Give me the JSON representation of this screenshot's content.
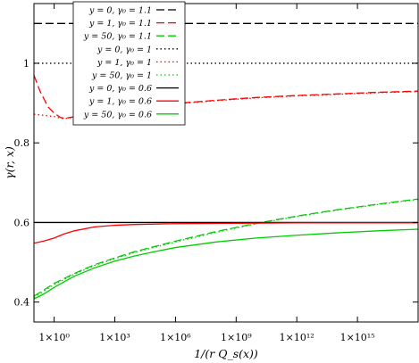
{
  "chart_data": {
    "type": "line",
    "xscale": "log",
    "xlabel": "1/(r Q_s(x))",
    "ylabel": "γ(r, x)",
    "xlim": [
      0.1,
      1e+18
    ],
    "ylim": [
      0.35,
      1.15
    ],
    "xticks": [
      1,
      1000,
      1000000,
      1000000000,
      1000000000000,
      1000000000000000
    ],
    "xtick_labels": [
      "1×10⁰",
      "1×10³",
      "1×10⁶",
      "1×10⁹",
      "1×10¹²",
      "1×10¹⁵"
    ],
    "yticks": [
      0.4,
      0.6,
      0.8,
      1.0
    ],
    "ytick_labels": [
      "0.4",
      "0.6",
      "0.8",
      "1"
    ],
    "grid": false,
    "legend_position": "top-left",
    "series": [
      {
        "name": "y = 0, γ₀ = 1.1",
        "style": "dashed",
        "color": "#000000",
        "points": [
          [
            0.1,
            1.1
          ],
          [
            1e+18,
            1.1
          ]
        ]
      },
      {
        "name": "y = 1, γ₀ = 1.1",
        "style": "dashed",
        "color": "#ff0000",
        "points": [
          [
            0.1,
            0.97
          ],
          [
            0.2,
            0.93
          ],
          [
            0.5,
            0.89
          ],
          [
            1,
            0.875
          ],
          [
            2,
            0.864
          ],
          [
            3,
            0.862
          ],
          [
            5,
            0.863
          ],
          [
            10,
            0.866
          ],
          [
            100,
            0.873
          ],
          [
            1000,
            0.881
          ],
          [
            10000,
            0.887
          ],
          [
            100000,
            0.893
          ],
          [
            1000000,
            0.899
          ],
          [
            100000000.0,
            0.907
          ],
          [
            10000000000.0,
            0.914
          ],
          [
            1000000000000.0,
            0.919
          ],
          [
            100000000000000.0,
            0.923
          ],
          [
            1e+16,
            0.927
          ],
          [
            1e+18,
            0.93
          ]
        ]
      },
      {
        "name": "y = 50, γ₀ = 1.1",
        "style": "dashed",
        "color": "#00cc00",
        "points": [
          [
            0.1,
            0.415
          ],
          [
            0.3,
            0.43
          ],
          [
            1,
            0.447
          ],
          [
            10,
            0.472
          ],
          [
            100,
            0.494
          ],
          [
            1000,
            0.511
          ],
          [
            10000,
            0.527
          ],
          [
            100000,
            0.54
          ],
          [
            1000000,
            0.553
          ],
          [
            100000000.0,
            0.577
          ],
          [
            10000000000.0,
            0.598
          ],
          [
            1000000000000.0,
            0.616
          ],
          [
            100000000000000.0,
            0.632
          ],
          [
            1e+16,
            0.646
          ],
          [
            1e+18,
            0.659
          ]
        ]
      },
      {
        "name": "y = 0, γ₀ = 1",
        "style": "dotted",
        "color": "#000000",
        "points": [
          [
            0.1,
            1.0
          ],
          [
            1e+18,
            1.0
          ]
        ]
      },
      {
        "name": "y = 1, γ₀ = 1",
        "style": "dotted",
        "color": "#ff0000",
        "points": [
          [
            0.1,
            0.872
          ],
          [
            0.5,
            0.868
          ],
          [
            1,
            0.866
          ],
          [
            2,
            0.862
          ],
          [
            3,
            0.861
          ],
          [
            5,
            0.862
          ],
          [
            10,
            0.865
          ],
          [
            100,
            0.872
          ],
          [
            1000,
            0.88
          ],
          [
            10000,
            0.886
          ],
          [
            100000,
            0.892
          ],
          [
            1000000,
            0.898
          ],
          [
            100000000.0,
            0.906
          ],
          [
            10000000000.0,
            0.913
          ],
          [
            1000000000000.0,
            0.918
          ],
          [
            100000000000000.0,
            0.922
          ],
          [
            1e+16,
            0.926
          ],
          [
            1e+18,
            0.929
          ]
        ]
      },
      {
        "name": "y = 50, γ₀ = 1",
        "style": "dotted",
        "color": "#00cc00",
        "points": [
          [
            0.1,
            0.412
          ],
          [
            0.3,
            0.427
          ],
          [
            1,
            0.444
          ],
          [
            10,
            0.47
          ],
          [
            100,
            0.492
          ],
          [
            1000,
            0.509
          ],
          [
            10000,
            0.525
          ],
          [
            100000,
            0.538
          ],
          [
            1000000,
            0.551
          ],
          [
            100000000.0,
            0.575
          ],
          [
            10000000000.0,
            0.597
          ],
          [
            1000000000000.0,
            0.615
          ],
          [
            100000000000000.0,
            0.631
          ],
          [
            1e+16,
            0.645
          ],
          [
            1e+18,
            0.658
          ]
        ]
      },
      {
        "name": "y = 0, γ₀ = 0.6",
        "style": "solid",
        "color": "#000000",
        "points": [
          [
            0.1,
            0.6
          ],
          [
            1e+18,
            0.6
          ]
        ]
      },
      {
        "name": "y = 1, γ₀ = 0.6",
        "style": "solid",
        "color": "#ff0000",
        "points": [
          [
            0.1,
            0.548
          ],
          [
            0.3,
            0.553
          ],
          [
            1,
            0.561
          ],
          [
            3,
            0.571
          ],
          [
            10,
            0.579
          ],
          [
            100,
            0.589
          ],
          [
            1000,
            0.593
          ],
          [
            10000,
            0.595
          ],
          [
            100000,
            0.596
          ],
          [
            1000000,
            0.597
          ],
          [
            1000000000.0,
            0.598
          ],
          [
            1000000000000.0,
            0.599
          ],
          [
            1e+18,
            0.599
          ]
        ]
      },
      {
        "name": "y = 50, γ₀ = 0.6",
        "style": "solid",
        "color": "#00cc00",
        "points": [
          [
            0.1,
            0.408
          ],
          [
            0.3,
            0.42
          ],
          [
            1,
            0.437
          ],
          [
            10,
            0.465
          ],
          [
            100,
            0.486
          ],
          [
            1000,
            0.503
          ],
          [
            10000,
            0.516
          ],
          [
            100000,
            0.527
          ],
          [
            1000000,
            0.537
          ],
          [
            100000000.0,
            0.551
          ],
          [
            10000000000.0,
            0.561
          ],
          [
            1000000000000.0,
            0.568
          ],
          [
            100000000000000.0,
            0.574
          ],
          [
            1e+16,
            0.579
          ],
          [
            1e+18,
            0.583
          ]
        ]
      }
    ]
  }
}
